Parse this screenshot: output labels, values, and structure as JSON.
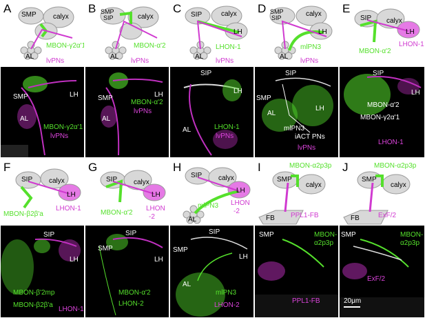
{
  "panels": [
    {
      "letter": "A",
      "top_labels": [
        "SMP",
        "calyx",
        "AL",
        "lvPNs",
        "MBON-γ2α'1"
      ],
      "bottom_labels": [
        "SMP",
        "LH",
        "AL",
        "MBON-γ2α'1",
        "lvPNs"
      ]
    },
    {
      "letter": "B",
      "top_labels": [
        "SMP",
        "SIP",
        "calyx",
        "AL",
        "lvPNs",
        "MBON-α'2"
      ],
      "bottom_labels": [
        "SMP",
        "LH",
        "AL",
        "MBON-α'2",
        "lvPNs"
      ]
    },
    {
      "letter": "C",
      "top_labels": [
        "SIP",
        "calyx",
        "LH",
        "AL",
        "LHON-1",
        "lvPNs"
      ],
      "bottom_labels": [
        "SIP",
        "LH",
        "AL",
        "LHON-1",
        "lvPNs"
      ]
    },
    {
      "letter": "D",
      "top_labels": [
        "SMP",
        "SIP",
        "calyx",
        "LH",
        "AL",
        "mlPN3",
        "lvPNs"
      ],
      "bottom_labels": [
        "SIP",
        "SMP",
        "LH",
        "AL",
        "mlPN3",
        "iACT PNs",
        "lvPNs"
      ]
    },
    {
      "letter": "E",
      "top_labels": [
        "SIP",
        "calyx",
        "LH",
        "MBON-α'2",
        "LHON-1"
      ],
      "bottom_labels": [
        "SIP",
        "LH",
        "MBON-α'2",
        "MBON-γ2α'1",
        "LHON-1"
      ]
    },
    {
      "letter": "F",
      "top_labels": [
        "SIP",
        "calyx",
        "LH",
        "MBON-β2β'a",
        "LHON-1"
      ],
      "bottom_labels": [
        "SIP",
        "LH",
        "MBON-β'2mp",
        "MBON-β2β'a",
        "LHON-1"
      ]
    },
    {
      "letter": "G",
      "top_labels": [
        "SIP",
        "calyx",
        "LH",
        "MBON-α'2",
        "LHON",
        "-2"
      ],
      "bottom_labels": [
        "SIP",
        "SMP",
        "LH",
        "MBON-α'2",
        "LHON-2"
      ]
    },
    {
      "letter": "H",
      "top_labels": [
        "SIP",
        "calyx",
        "LH",
        "AL",
        "mlPN3",
        "LHON",
        "-2"
      ],
      "bottom_labels": [
        "SIP",
        "SMP",
        "LH",
        "AL",
        "mlPN3",
        "LHON-2"
      ]
    },
    {
      "letter": "I",
      "top_labels": [
        "MBON-α2p3p",
        "SMP",
        "calyx",
        "FB",
        "PPL1-FB"
      ],
      "bottom_labels": [
        "SMP",
        "MBON-",
        "α2p3p",
        "PPL1-FB"
      ]
    },
    {
      "letter": "J",
      "top_labels": [
        "MBON-α2p3p",
        "SMP",
        "calyx",
        "FB",
        "ExF/2"
      ],
      "bottom_labels": [
        "SMP",
        "MBON-",
        "α2p3p",
        "ExF/2",
        "20μm"
      ]
    }
  ]
}
